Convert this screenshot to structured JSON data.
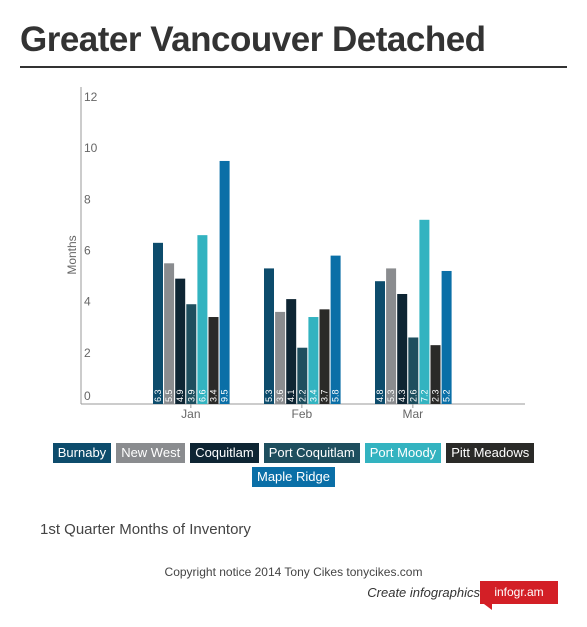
{
  "title": "Greater Vancouver Detached",
  "subtitle": "1st Quarter Months of Inventory",
  "copyright": "Copyright notice 2014 Tony Cikes tonycikes.com",
  "create_text": "Create infographics",
  "badge_text": "infogr.am",
  "chart_data": {
    "type": "bar",
    "categories": [
      "Jan",
      "Feb",
      "Mar"
    ],
    "ylabel": "Months",
    "xlabel": "",
    "ylim": [
      0,
      12
    ],
    "yticks": [
      0,
      2,
      4,
      6,
      8,
      10,
      12
    ],
    "grid": false,
    "legend_position": "bottom",
    "series": [
      {
        "name": "Burnaby",
        "color": "#0d4c6c",
        "values": [
          6.3,
          5.3,
          4.8
        ],
        "labels": [
          "6.3",
          "5.3",
          "4.8"
        ]
      },
      {
        "name": "New West",
        "color": "#8a8c8f",
        "values": [
          5.5,
          3.6,
          5.3
        ],
        "labels": [
          "5.5",
          "3.6",
          "5.3"
        ]
      },
      {
        "name": "Coquitlam",
        "color": "#0e2533",
        "values": [
          4.9,
          4.1,
          4.3
        ],
        "labels": [
          "4.9",
          "4.1",
          "4.3"
        ]
      },
      {
        "name": "Port Coquitlam",
        "color": "#1e4e5e",
        "values": [
          3.9,
          2.2,
          2.6
        ],
        "labels": [
          "3.9",
          "2.2",
          "2.6"
        ]
      },
      {
        "name": "Port Moody",
        "color": "#33b3c0",
        "values": [
          6.6,
          3.4,
          7.2
        ],
        "labels": [
          "6.6",
          "3.4",
          "7.2"
        ]
      },
      {
        "name": "Pitt Meadows",
        "color": "#2a2a28",
        "values": [
          3.4,
          3.7,
          2.3
        ],
        "labels": [
          "3.4",
          "3.7",
          "2.3"
        ]
      },
      {
        "name": "Maple Ridge",
        "color": "#0a6fa7",
        "values": [
          9.5,
          5.8,
          5.2
        ],
        "labels": [
          "9.5",
          "5.8",
          "5.2"
        ]
      }
    ]
  }
}
